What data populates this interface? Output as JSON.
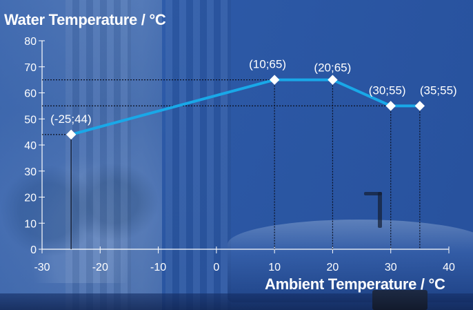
{
  "chart_data": {
    "type": "line",
    "title": "Water Temperature / °C",
    "xlabel": "Ambient Temperature / °C",
    "ylabel": "Water Temperature / °C",
    "xlim": [
      -30,
      40
    ],
    "ylim": [
      0,
      80
    ],
    "x_ticks": [
      -30,
      -20,
      -10,
      0,
      10,
      20,
      30,
      40
    ],
    "y_ticks": [
      0,
      10,
      20,
      30,
      40,
      50,
      60,
      70,
      80
    ],
    "x_tick_labels": [
      "-30",
      "-20",
      "-10",
      "0",
      "10",
      "20",
      "30",
      "40"
    ],
    "y_tick_labels": [
      "0",
      "10",
      "20",
      "30",
      "40",
      "50",
      "60",
      "70",
      "80"
    ],
    "grid": false,
    "series": [
      {
        "x": [
          -25,
          10,
          20,
          30,
          35
        ],
        "y": [
          44,
          65,
          65,
          55,
          55
        ],
        "point_labels": [
          "(-25;44)",
          "(10;65)",
          "(20;65)",
          "(30;55)",
          "(35;55)"
        ]
      }
    ],
    "colors": {
      "line": "#19a8e8",
      "marker": "#ffffff",
      "axes": "#ffffff",
      "guides": "#0a0f1e",
      "text": "#ffffff"
    }
  }
}
